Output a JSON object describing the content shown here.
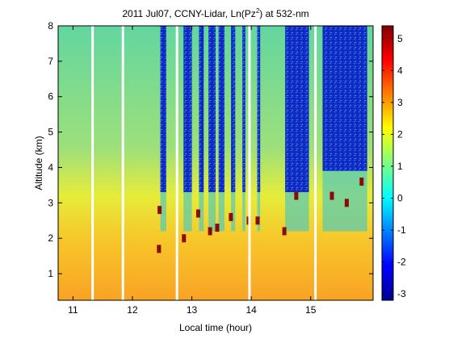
{
  "chart_data": {
    "type": "heatmap",
    "title": {
      "prefix": "2011 Jul07, CCNY-Lidar, Ln(Pz",
      "superscript": "2",
      "suffix": ") at 532-nm"
    },
    "xlabel": "Local time (hour)",
    "ylabel": "Altitude (km)",
    "xlim": [
      10.75,
      16.05
    ],
    "ylim": [
      0.25,
      8.0
    ],
    "xticks": [
      "11",
      "12",
      "13",
      "14",
      "15"
    ],
    "yticks": [
      "1",
      "2",
      "3",
      "4",
      "5",
      "6",
      "7",
      "8"
    ],
    "colorbar": {
      "range": [
        -3.2,
        5.4
      ],
      "ticks": [
        "-3",
        "-2",
        "-1",
        "0",
        "1",
        "2",
        "3",
        "4",
        "5"
      ],
      "colormap": "jet"
    },
    "gap_times_hours": [
      11.33,
      11.84,
      12.75,
      13.97,
      15.08
    ],
    "clear_sky_intervals_hours": [
      [
        12.47,
        12.57
      ],
      [
        12.86,
        13.0
      ],
      [
        13.12,
        13.2
      ],
      [
        13.28,
        13.4
      ],
      [
        13.45,
        13.55
      ],
      [
        13.66,
        13.73
      ],
      [
        13.85,
        13.9
      ],
      [
        14.1,
        14.15
      ],
      [
        14.57,
        14.97
      ],
      [
        15.2,
        15.95
      ]
    ],
    "cloud_base_km": [
      {
        "t": 12.44,
        "z": 1.7
      },
      {
        "t": 12.45,
        "z": 2.8
      },
      {
        "t": 12.86,
        "z": 2.0
      },
      {
        "t": 13.1,
        "z": 2.7
      },
      {
        "t": 13.3,
        "z": 2.2
      },
      {
        "t": 13.42,
        "z": 2.3
      },
      {
        "t": 13.65,
        "z": 2.6
      },
      {
        "t": 13.95,
        "z": 2.5
      },
      {
        "t": 14.1,
        "z": 2.5
      },
      {
        "t": 14.55,
        "z": 2.2
      },
      {
        "t": 14.75,
        "z": 3.2
      },
      {
        "t": 15.35,
        "z": 3.2
      },
      {
        "t": 15.6,
        "z": 3.0
      },
      {
        "t": 15.85,
        "z": 3.6
      }
    ]
  }
}
